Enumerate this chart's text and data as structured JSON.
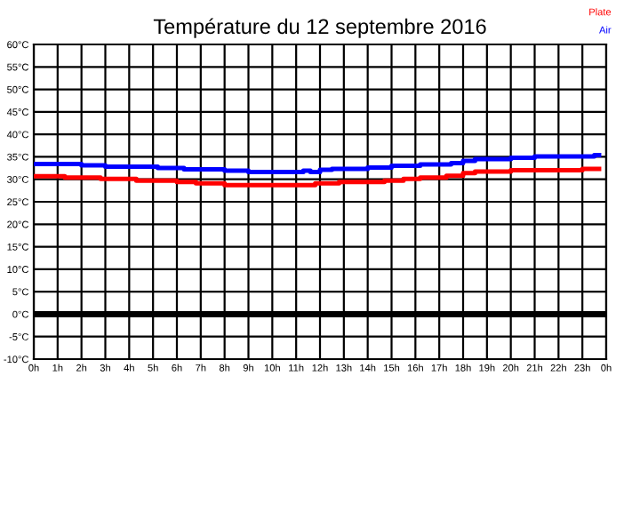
{
  "chart_data": {
    "type": "step",
    "title": "Température du 12 septembre 2016",
    "legend": "top right",
    "grid": true,
    "xlim": [
      "2016-09-12T00:00",
      "2016-09-13T00:00"
    ],
    "xticks": [
      {
        "value": "2016-09-12T00:00",
        "label": "0h"
      },
      {
        "value": "2016-09-12T01:00",
        "label": "1h"
      },
      {
        "value": "2016-09-12T02:00",
        "label": "2h"
      },
      {
        "value": "2016-09-12T03:00",
        "label": "3h"
      },
      {
        "value": "2016-09-12T04:00",
        "label": "4h"
      },
      {
        "value": "2016-09-12T05:00",
        "label": "5h"
      },
      {
        "value": "2016-09-12T06:00",
        "label": "6h"
      },
      {
        "value": "2016-09-12T07:00",
        "label": "7h"
      },
      {
        "value": "2016-09-12T08:00",
        "label": "8h"
      },
      {
        "value": "2016-09-12T09:00",
        "label": "9h"
      },
      {
        "value": "2016-09-12T10:00",
        "label": "10h"
      },
      {
        "value": "2016-09-12T11:00",
        "label": "11h"
      },
      {
        "value": "2016-09-12T12:00",
        "label": "12h"
      },
      {
        "value": "2016-09-12T13:00",
        "label": "13h"
      },
      {
        "value": "2016-09-12T14:00",
        "label": "14h"
      },
      {
        "value": "2016-09-12T15:00",
        "label": "15h"
      },
      {
        "value": "2016-09-12T16:00",
        "label": "16h"
      },
      {
        "value": "2016-09-12T17:00",
        "label": "17h"
      },
      {
        "value": "2016-09-12T18:00",
        "label": "18h"
      },
      {
        "value": "2016-09-12T19:00",
        "label": "19h"
      },
      {
        "value": "2016-09-12T20:00",
        "label": "20h"
      },
      {
        "value": "2016-09-12T21:00",
        "label": "21h"
      },
      {
        "value": "2016-09-12T22:00",
        "label": "22h"
      },
      {
        "value": "2016-09-12T23:00",
        "label": "23h"
      },
      {
        "value": "2016-09-13T00:00",
        "label": "0h"
      }
    ],
    "ylim": [
      -10,
      60
    ],
    "yticks": [
      {
        "value": -10,
        "label": "-10°C"
      },
      {
        "value": -5,
        "label": "-5°C"
      },
      {
        "value": 0,
        "label": "0°C"
      },
      {
        "value": 5,
        "label": "5°C"
      },
      {
        "value": 10,
        "label": "10°C"
      },
      {
        "value": 15,
        "label": "15°C"
      },
      {
        "value": 20,
        "label": "20°C"
      },
      {
        "value": 25,
        "label": "25°C"
      },
      {
        "value": 30,
        "label": "30°C"
      },
      {
        "value": 35,
        "label": "35°C"
      },
      {
        "value": 40,
        "label": "40°C"
      },
      {
        "value": 45,
        "label": "45°C"
      },
      {
        "value": 50,
        "label": "50°C"
      },
      {
        "value": 55,
        "label": "55°C"
      },
      {
        "value": 60,
        "label": "60°C"
      }
    ],
    "ref_lines": [
      {
        "axis": "y",
        "value": 0,
        "color": "#000000"
      }
    ],
    "series": [
      {
        "name": "Plate",
        "color": "#ff0000",
        "x": [
          "2016-09-12T00:00",
          "2016-09-12T01:18",
          "2016-09-12T02:48",
          "2016-09-12T04:18",
          "2016-09-12T06:00",
          "2016-09-12T06:48",
          "2016-09-12T08:00",
          "2016-09-12T11:48",
          "2016-09-12T12:48",
          "2016-09-12T14:42",
          "2016-09-12T15:30",
          "2016-09-12T16:12",
          "2016-09-12T17:18",
          "2016-09-12T18:00",
          "2016-09-12T18:30",
          "2016-09-12T20:00",
          "2016-09-12T23:00",
          "2016-09-12T23:42"
        ],
        "values": [
          30.7,
          30.4,
          30.1,
          29.7,
          29.4,
          29.1,
          28.7,
          29.1,
          29.4,
          29.7,
          30.1,
          30.4,
          30.8,
          31.4,
          31.7,
          32.0,
          32.3,
          32.3
        ]
      },
      {
        "name": "Air",
        "color": "#0000ff",
        "x": [
          "2016-09-12T00:00",
          "2016-09-12T02:00",
          "2016-09-12T03:00",
          "2016-09-12T05:12",
          "2016-09-12T06:18",
          "2016-09-12T08:00",
          "2016-09-12T09:00",
          "2016-09-12T11:18",
          "2016-09-12T11:36",
          "2016-09-12T12:00",
          "2016-09-12T12:30",
          "2016-09-12T14:00",
          "2016-09-12T15:00",
          "2016-09-12T16:12",
          "2016-09-12T17:30",
          "2016-09-12T18:00",
          "2016-09-12T18:30",
          "2016-09-12T20:00",
          "2016-09-12T21:00",
          "2016-09-12T23:30",
          "2016-09-12T23:42"
        ],
        "values": [
          33.4,
          33.1,
          32.8,
          32.5,
          32.2,
          31.9,
          31.6,
          31.9,
          31.6,
          32.1,
          32.3,
          32.6,
          33.0,
          33.3,
          33.6,
          34.1,
          34.5,
          34.8,
          35.1,
          35.4,
          35.4
        ]
      }
    ]
  }
}
